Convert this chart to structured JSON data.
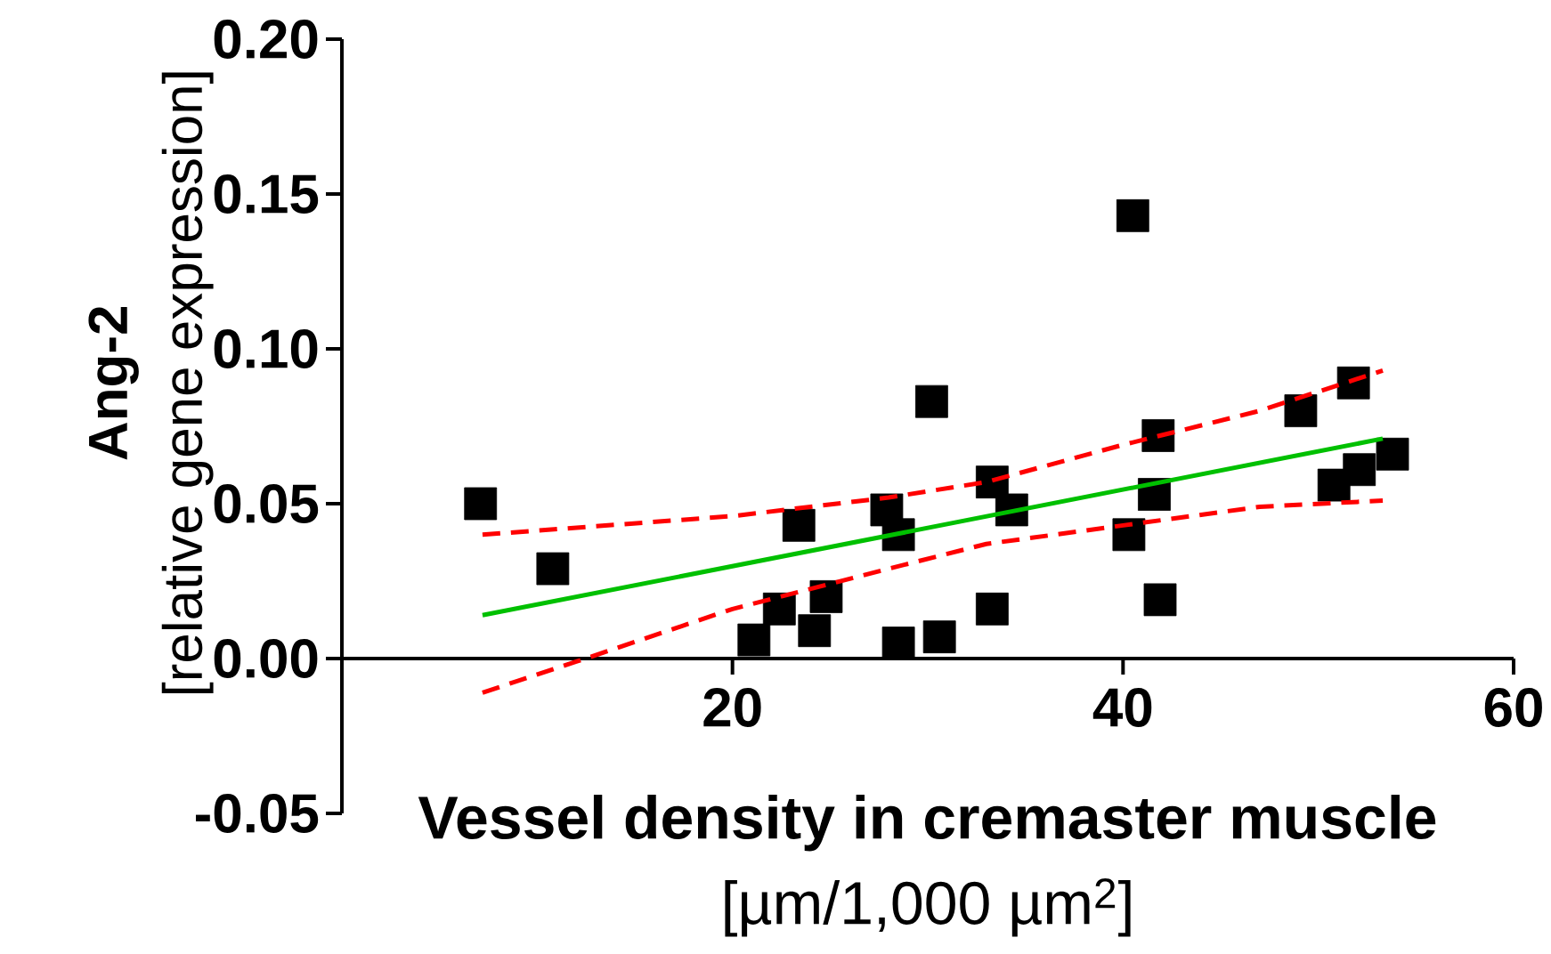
{
  "chart_data": {
    "type": "scatter",
    "xlabel": "**Vessel density in cremaster muscle** [µm/1,000 µm$^{2}$]",
    "ylabel": "**Ang-2** [relative gene expression]",
    "xlim": [
      0,
      60
    ],
    "xticks": [
      20,
      40,
      60
    ],
    "ylim": [
      -0.05,
      0.2
    ],
    "yticks": [
      {
        "value": -0.05,
        "label": "-0.05"
      },
      {
        "value": 0.0,
        "label": "0.00"
      },
      {
        "value": 0.05,
        "label": "0.05"
      },
      {
        "value": 0.1,
        "label": "0.10"
      },
      {
        "value": 0.15,
        "label": "0.15"
      },
      {
        "value": 0.2,
        "label": "0.20"
      }
    ],
    "grid": false,
    "series": [
      {
        "color": "#000000",
        "marker": "square",
        "x": [
          7.1,
          10.8,
          23.4,
          21.1,
          22.4,
          24.2,
          24.8,
          27.9,
          28.5,
          28.5,
          30.2,
          30.6,
          33.3,
          33.3,
          34.3,
          40.5,
          41.8,
          41.6,
          40.3,
          41.9,
          49.1,
          51.8,
          50.8,
          52.1,
          53.8
        ],
        "values": [
          0.05,
          0.029,
          0.043,
          0.006,
          0.016,
          0.009,
          0.02,
          0.048,
          0.04,
          0.005,
          0.083,
          0.007,
          0.016,
          0.057,
          0.048,
          0.143,
          0.072,
          0.053,
          0.04,
          0.019,
          0.08,
          0.089,
          0.056,
          0.061,
          0.066
        ]
      },
      {
        "type": "line",
        "color": "#00c000",
        "line_style": "solid",
        "marker": "none",
        "x": [
          7.2,
          53.3
        ],
        "values": [
          0.014,
          0.071
        ]
      },
      {
        "type": "line",
        "color": "#ff0000",
        "line_style": "dashed",
        "marker": "none",
        "x": [
          7.2,
          20,
          28,
          33,
          40,
          47,
          53.3
        ],
        "values": [
          0.04,
          0.046,
          0.052,
          0.057,
          0.069,
          0.08,
          0.093
        ]
      },
      {
        "type": "line",
        "color": "#ff0000",
        "line_style": "dashed",
        "marker": "none",
        "x": [
          7.2,
          12,
          20,
          28,
          33,
          40,
          47,
          53.3
        ],
        "values": [
          -0.011,
          -0.001,
          0.016,
          0.029,
          0.037,
          0.043,
          0.049,
          0.051
        ]
      }
    ]
  }
}
